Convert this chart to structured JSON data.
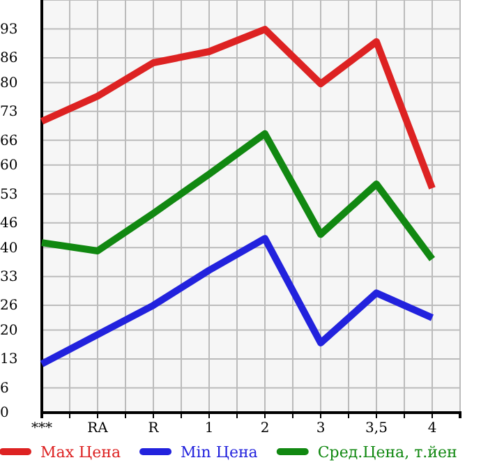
{
  "chart_data": {
    "type": "line",
    "categories": [
      "***",
      "RA",
      "R",
      "1",
      "2",
      "3",
      "3,5",
      "4"
    ],
    "series": [
      {
        "name": "Max Цена",
        "color": "#dd2222",
        "values": [
          70.6,
          76.7,
          84.8,
          87.5,
          92.9,
          79.7,
          89.9,
          54.4
        ]
      },
      {
        "name": "Min Цена",
        "color": "#2222dd",
        "values": [
          11.8,
          18.9,
          26,
          34.5,
          42.2,
          16.9,
          29,
          23
        ]
      },
      {
        "name": "Сред.Цена, т.йен",
        "color": "#118811",
        "values": [
          41.2,
          39.2,
          48.3,
          57.8,
          67.6,
          43.2,
          55.4,
          37.2
        ]
      }
    ],
    "ylim": [
      0,
      100
    ],
    "yticks": [
      0,
      6,
      13,
      20,
      26,
      33,
      40,
      46,
      53,
      60,
      66,
      73,
      80,
      86,
      93,
      {
        "value": 100,
        "label": null
      }
    ],
    "grid": true,
    "legend": "bottom",
    "marker": "none",
    "line_style": "solid"
  }
}
